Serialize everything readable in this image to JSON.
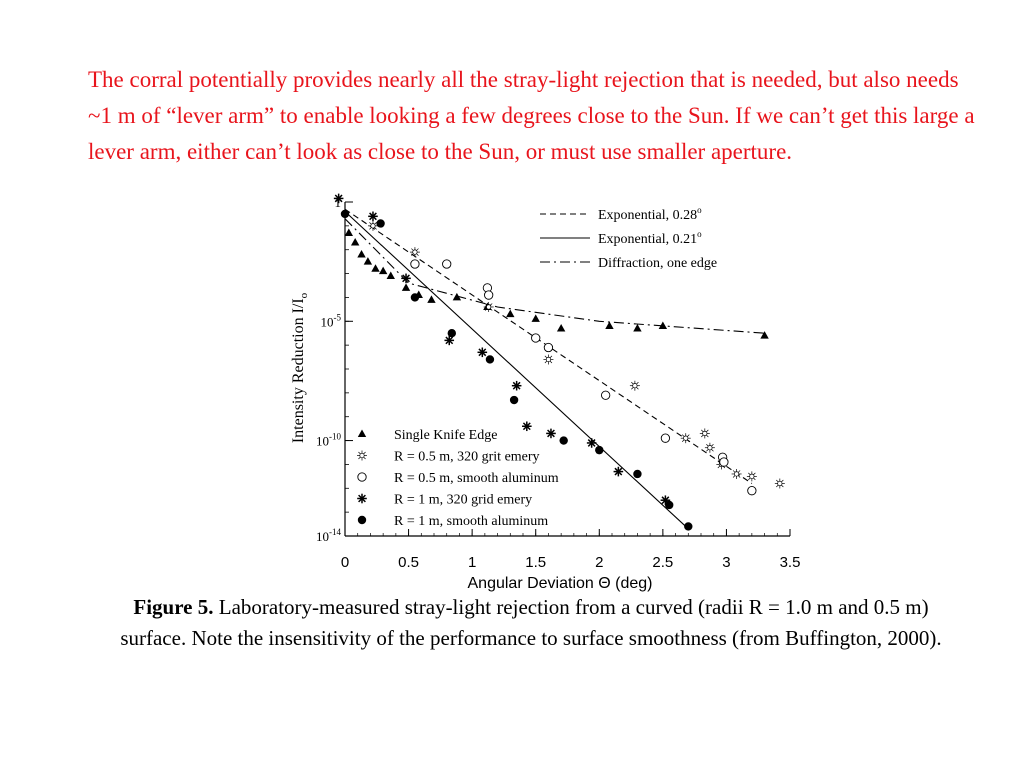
{
  "slide": {
    "intro_text": "The corral potentially provides nearly all the stray-light rejection that is needed, but also needs ~1 m of “lever arm” to enable looking a few degrees close to the Sun. If we can’t get this large a lever arm, either can’t look as close to the Sun, or must use smaller aperture.",
    "intro_color": "#e8141c",
    "caption_lead": "Figure 5.",
    "caption_text": " Laboratory-measured stray-light rejection from a curved (radii R = 1.0 m and 0.5 m) surface. Note the insensitivity of the performance to surface smoothness (from Buffington, 2000)."
  },
  "chart_data": {
    "type": "scatter",
    "title": "",
    "xlabel": "Angular Deviation Θ (deg)",
    "ylabel": "Intensity Reduction I/I",
    "ylabel_sub": "o",
    "y_scale": "log",
    "xlim": [
      0,
      3.5
    ],
    "ylim_exp": [
      -14,
      0
    ],
    "x_ticks": [
      {
        "value": 0,
        "label": "0"
      },
      {
        "value": 0.5,
        "label": "0.5"
      },
      {
        "value": 1,
        "label": "1"
      },
      {
        "value": 1.5,
        "label": "1.5"
      },
      {
        "value": 2,
        "label": "2"
      },
      {
        "value": 2.5,
        "label": "2.5"
      },
      {
        "value": 3,
        "label": "3"
      },
      {
        "value": 3.5,
        "label": "3.5"
      }
    ],
    "y_ticks": [
      {
        "exp": 0,
        "base": "1",
        "sup": ""
      },
      {
        "exp": -5,
        "base": "10",
        "sup": "-5"
      },
      {
        "exp": -10,
        "base": "10",
        "sup": "-10"
      },
      {
        "exp": -14,
        "base": "10",
        "sup": "-14"
      }
    ],
    "grid": false,
    "lines_legend_position": "top-right",
    "markers_legend_position": "bottom-left",
    "lines": [
      {
        "name": "Exponential, 0.28",
        "name_sup": "o",
        "style": "dashed",
        "points": [
          [
            0,
            -0.3
          ],
          [
            3.2,
            -11.8
          ]
        ]
      },
      {
        "name": "Exponential, 0.21",
        "name_sup": "o",
        "style": "solid",
        "points": [
          [
            0,
            -0.4
          ],
          [
            2.7,
            -13.7
          ]
        ]
      },
      {
        "name": "Diffraction, one edge",
        "name_sup": "",
        "style": "dashdot",
        "points": [
          [
            0,
            -0.7
          ],
          [
            0.5,
            -3.4
          ],
          [
            1.2,
            -4.4
          ],
          [
            2.0,
            -5.0
          ],
          [
            3.3,
            -5.5
          ]
        ]
      }
    ],
    "series": [
      {
        "name": "Single Knife Edge",
        "marker": "triangle",
        "points": [
          [
            0.03,
            -1.3
          ],
          [
            0.08,
            -1.7
          ],
          [
            0.13,
            -2.2
          ],
          [
            0.18,
            -2.5
          ],
          [
            0.24,
            -2.8
          ],
          [
            0.3,
            -2.9
          ],
          [
            0.36,
            -3.1
          ],
          [
            0.48,
            -3.6
          ],
          [
            0.58,
            -3.9
          ],
          [
            0.68,
            -4.1
          ],
          [
            0.88,
            -4.0
          ],
          [
            1.12,
            -4.4
          ],
          [
            1.3,
            -4.7
          ],
          [
            1.5,
            -4.9
          ],
          [
            1.7,
            -5.3
          ],
          [
            2.08,
            -5.2
          ],
          [
            2.3,
            -5.3
          ],
          [
            2.5,
            -5.2
          ],
          [
            3.3,
            -5.6
          ]
        ]
      },
      {
        "name": "R = 0.5 m, 320 grit emery",
        "marker": "asterisk",
        "points": [
          [
            0.22,
            -1.0
          ],
          [
            0.55,
            -2.1
          ],
          [
            1.13,
            -4.4
          ],
          [
            1.6,
            -6.6
          ],
          [
            2.28,
            -7.7
          ],
          [
            2.68,
            -9.9
          ],
          [
            2.83,
            -9.7
          ],
          [
            2.87,
            -10.3
          ],
          [
            2.96,
            -11.0
          ],
          [
            3.08,
            -11.4
          ],
          [
            3.2,
            -11.5
          ],
          [
            3.42,
            -11.8
          ]
        ]
      },
      {
        "name": "R = 0.5 m, smooth aluminum",
        "marker": "circle",
        "points": [
          [
            0.55,
            -2.6
          ],
          [
            0.8,
            -2.6
          ],
          [
            1.12,
            -3.6
          ],
          [
            1.13,
            -3.9
          ],
          [
            1.5,
            -5.7
          ],
          [
            1.6,
            -6.1
          ],
          [
            2.05,
            -8.1
          ],
          [
            2.52,
            -9.9
          ],
          [
            2.97,
            -10.7
          ],
          [
            2.98,
            -10.9
          ],
          [
            3.2,
            -12.1
          ]
        ]
      },
      {
        "name": "R = 1 m, 320 grid emery",
        "marker": "star",
        "points": [
          [
            -0.05,
            0.15
          ],
          [
            0.22,
            -0.6
          ],
          [
            0.48,
            -3.2
          ],
          [
            0.82,
            -5.8
          ],
          [
            1.08,
            -6.3
          ],
          [
            1.35,
            -7.7
          ],
          [
            1.43,
            -9.4
          ],
          [
            1.62,
            -9.7
          ],
          [
            1.94,
            -10.1
          ],
          [
            2.15,
            -11.3
          ],
          [
            2.52,
            -12.5
          ]
        ]
      },
      {
        "name": "R = 1 m, smooth aluminum",
        "marker": "dot",
        "points": [
          [
            0.0,
            -0.5
          ],
          [
            0.28,
            -0.9
          ],
          [
            0.55,
            -4.0
          ],
          [
            0.84,
            -5.5
          ],
          [
            1.14,
            -6.6
          ],
          [
            1.33,
            -8.3
          ],
          [
            1.72,
            -10.0
          ],
          [
            2.0,
            -10.4
          ],
          [
            2.3,
            -11.4
          ],
          [
            2.55,
            -12.7
          ],
          [
            2.7,
            -13.6
          ]
        ]
      }
    ]
  }
}
